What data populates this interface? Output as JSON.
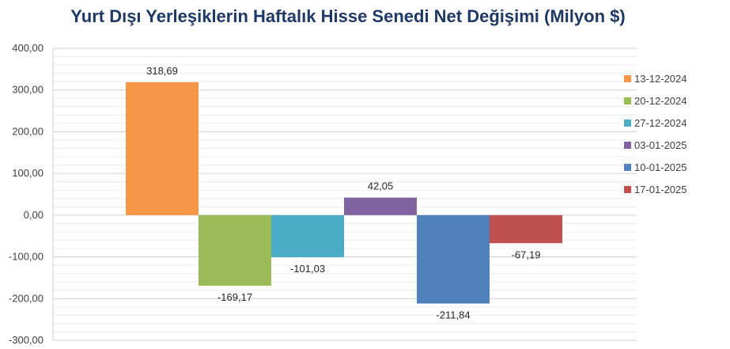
{
  "chart_data": {
    "type": "bar",
    "title": "Yurt Dışı Yerleşiklerin Haftalık Hisse Senedi Net Değişimi (Milyon $)",
    "xlabel": "",
    "ylabel": "",
    "ylim": [
      -300,
      400
    ],
    "yticks": [
      "400,00",
      "300,00",
      "200,00",
      "100,00",
      "0,00",
      "-100,00",
      "-200,00",
      "-300,00"
    ],
    "ytick_values": [
      400,
      300,
      200,
      100,
      0,
      -100,
      -200,
      -300
    ],
    "grid": true,
    "legend_position": "right",
    "series": [
      {
        "name": "13-12-2024",
        "value": 318.69,
        "label": "318,69",
        "color": "#f79646"
      },
      {
        "name": "20-12-2024",
        "value": -169.17,
        "label": "-169,17",
        "color": "#9bbb59"
      },
      {
        "name": "27-12-2024",
        "value": -101.03,
        "label": "-101,03",
        "color": "#4bacc6"
      },
      {
        "name": "03-01-2025",
        "value": 42.05,
        "label": "42,05",
        "color": "#8064a2"
      },
      {
        "name": "10-01-2025",
        "value": -211.84,
        "label": "-211,84",
        "color": "#4f81bd"
      },
      {
        "name": "17-01-2025",
        "value": -67.19,
        "label": "-67,19",
        "color": "#c0504d"
      }
    ]
  }
}
